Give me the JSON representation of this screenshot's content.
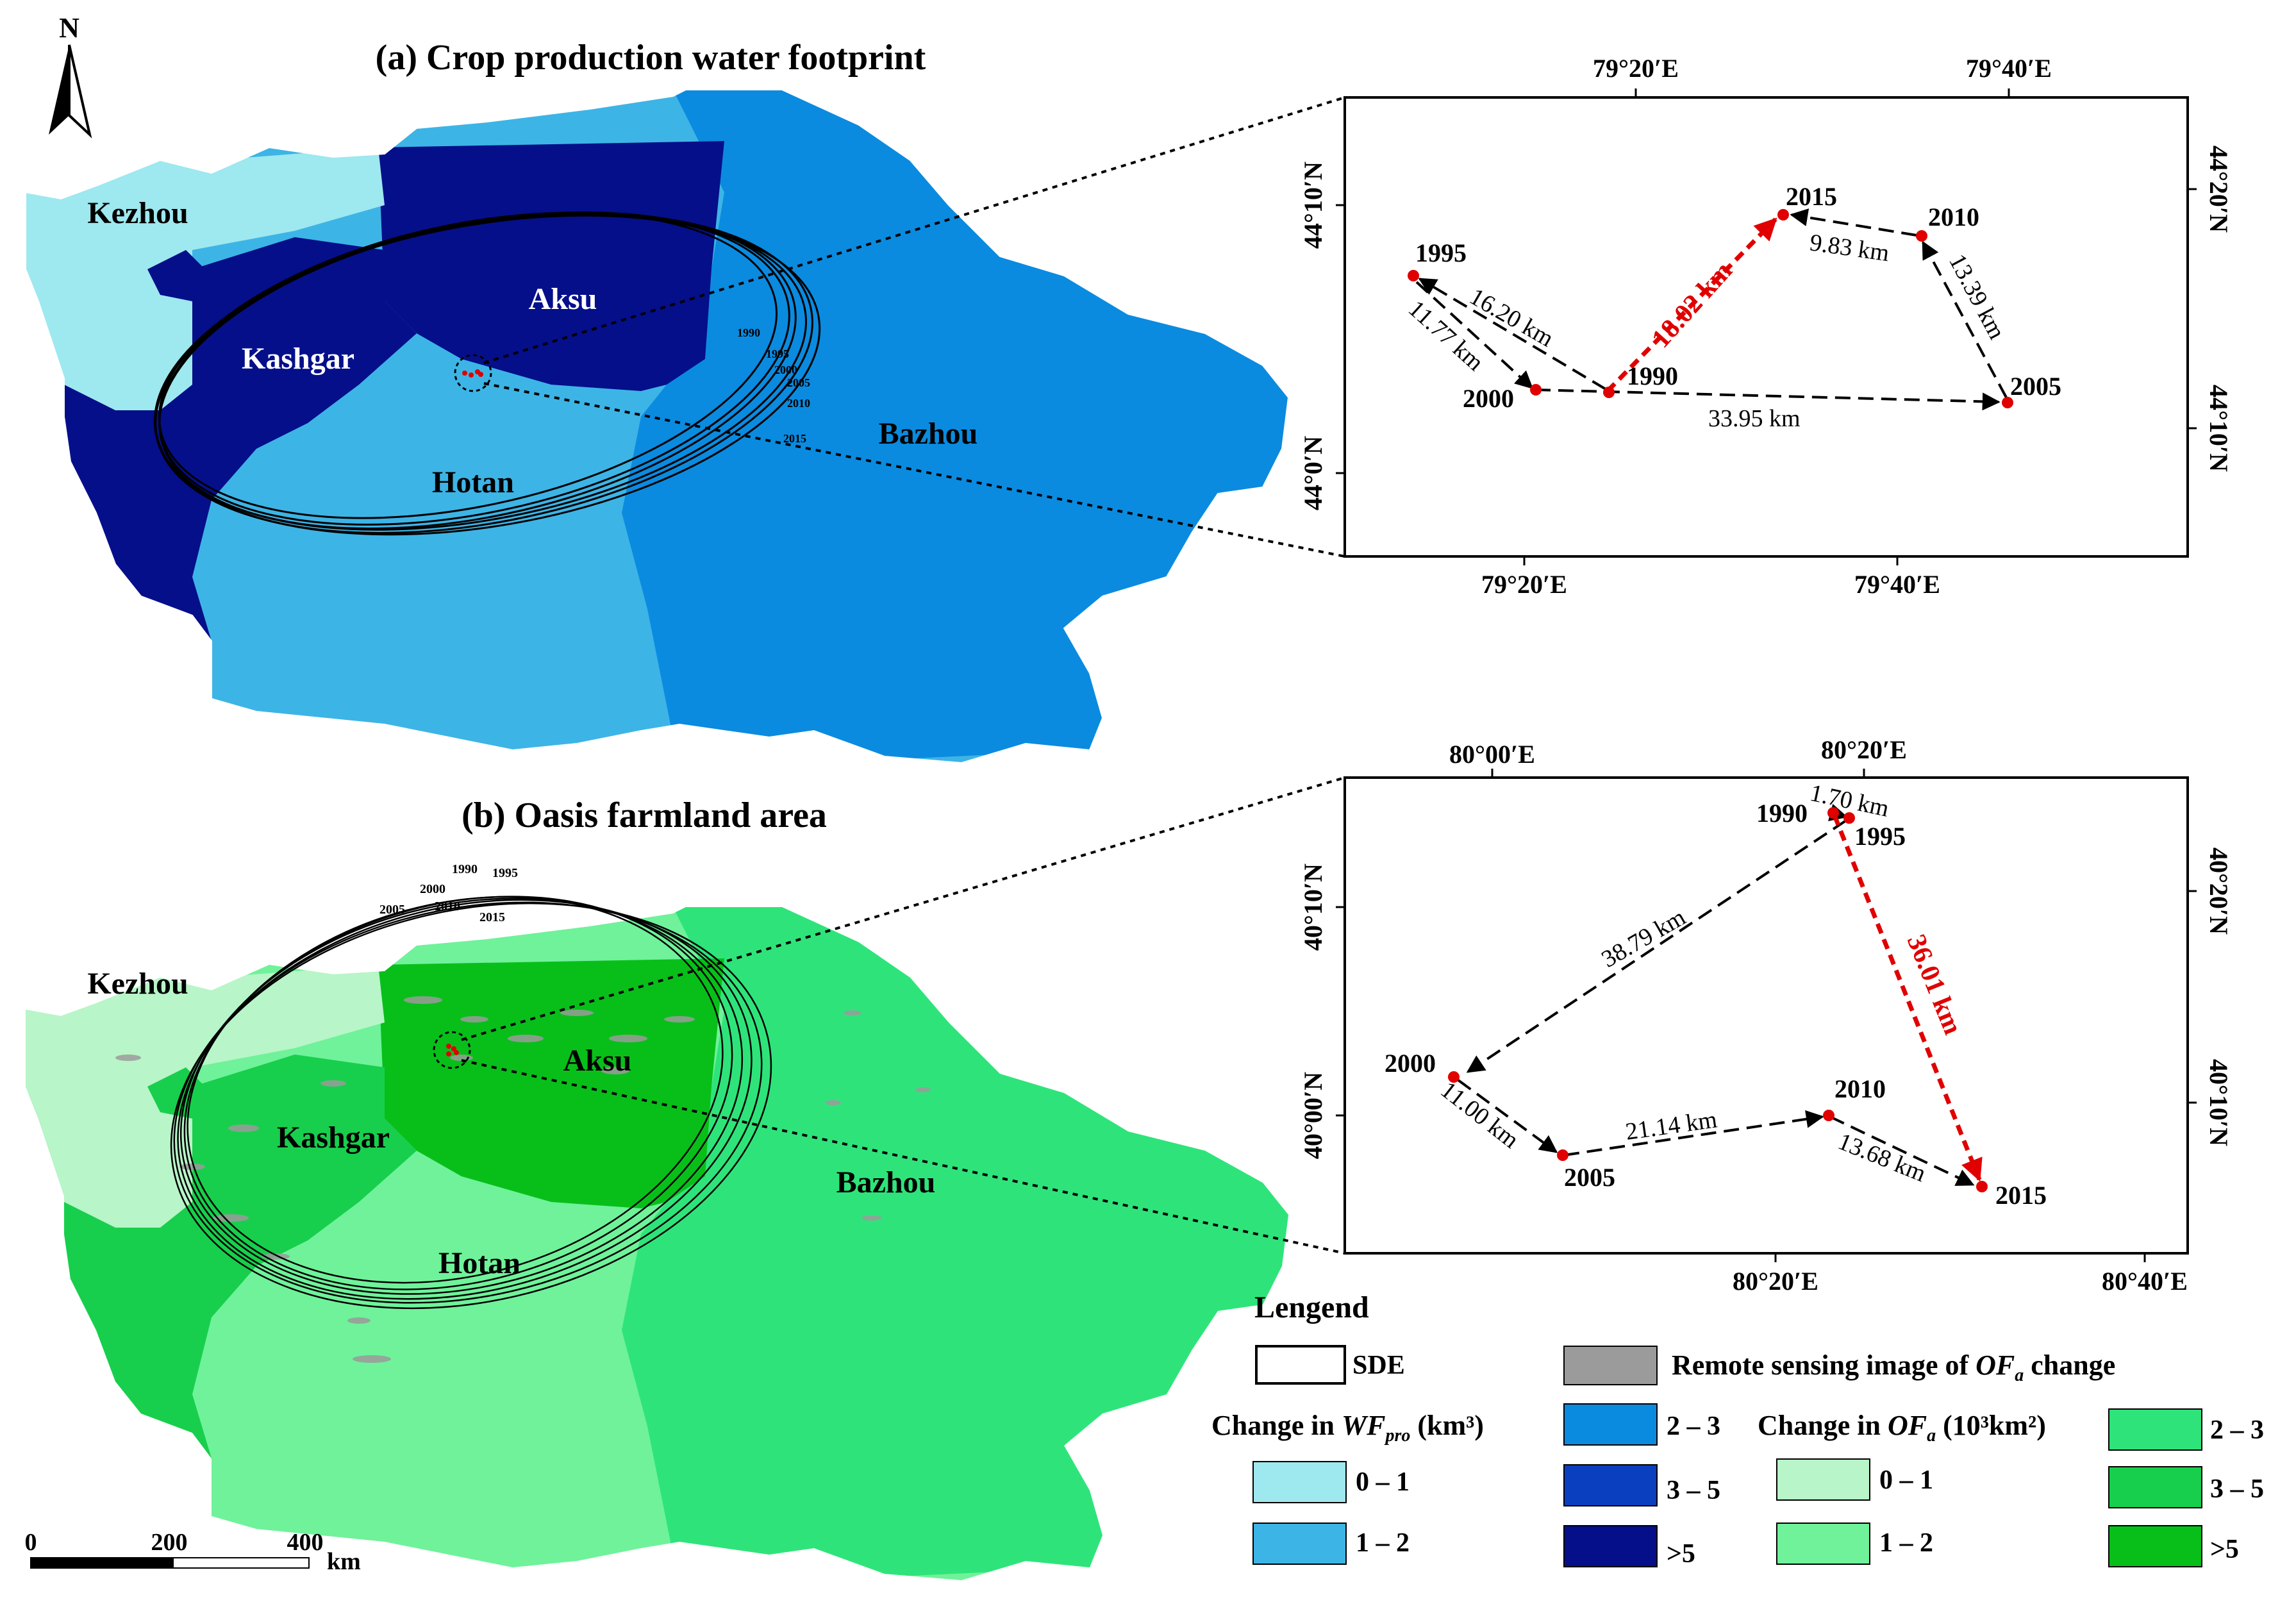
{
  "north_arrow": {
    "label": "N"
  },
  "panel_a": {
    "title": "(a) Crop production water footprint",
    "regions": {
      "kezhou": "Kezhou",
      "kashgar": "Kashgar",
      "aksu": "Aksu",
      "hotan": "Hotan",
      "bazhou": "Bazhou"
    },
    "ellipse_years": [
      "1990",
      "1995",
      "2000",
      "2005",
      "2010",
      "2015"
    ],
    "inset": {
      "top_ticks": [
        "79°20′E",
        "79°40′E"
      ],
      "bottom_ticks": [
        "79°20′E",
        "79°40′E"
      ],
      "left_ticks": [
        "44°10′N",
        "44°0′N"
      ],
      "right_ticks": [
        "44°20′N",
        "44°10′N"
      ],
      "points": [
        {
          "year": "1995"
        },
        {
          "year": "2000"
        },
        {
          "year": "1990"
        },
        {
          "year": "2015"
        },
        {
          "year": "2010"
        },
        {
          "year": "2005"
        }
      ],
      "segments": [
        {
          "label": "16.20 km"
        },
        {
          "label": "11.77 km"
        },
        {
          "label": "33.95 km"
        },
        {
          "label": "13.39 km"
        },
        {
          "label": "9.83 km"
        },
        {
          "label": "18.02 km",
          "highlight": true
        }
      ]
    }
  },
  "panel_b": {
    "title": "(b) Oasis farmland area",
    "regions": {
      "kezhou": "Kezhou",
      "kashgar": "Kashgar",
      "aksu": "Aksu",
      "hotan": "Hotan",
      "bazhou": "Bazhou"
    },
    "ellipse_years": [
      "1990",
      "1995",
      "2000",
      "2005",
      "2010",
      "2015"
    ],
    "inset": {
      "top_ticks": [
        "80°00′E",
        "80°20′E"
      ],
      "bottom_ticks": [
        "80°20′E",
        "80°40′E"
      ],
      "left_ticks": [
        "40°10′N",
        "40°00′N"
      ],
      "right_ticks": [
        "40°20′N",
        "40°10′N"
      ],
      "points": [
        {
          "year": "1990"
        },
        {
          "year": "1995"
        },
        {
          "year": "2000"
        },
        {
          "year": "2005"
        },
        {
          "year": "2010"
        },
        {
          "year": "2015"
        }
      ],
      "segments": [
        {
          "label": "1.70 km"
        },
        {
          "label": "38.79 km"
        },
        {
          "label": "11.00 km"
        },
        {
          "label": "21.14 km"
        },
        {
          "label": "13.68 km"
        },
        {
          "label": "36.01 km",
          "highlight": true
        }
      ]
    }
  },
  "scale_bar": {
    "ticks": [
      "0",
      "200",
      "400"
    ],
    "unit": "km"
  },
  "legend": {
    "title": "Lengend",
    "sde": "SDE",
    "remote": {
      "text": "Remote sensing image of ",
      "var": "OF",
      "sub": "a",
      "suffix": " change",
      "color": "#9b9b9b"
    },
    "wf_heading": {
      "text": "Change in ",
      "var": "WF",
      "sub": "pro",
      "unit": " (km³)"
    },
    "of_heading": {
      "text": "Change in ",
      "var": "OF",
      "sub": "a",
      "unit": " (10³km²)"
    },
    "wf_classes": [
      {
        "label": "0 – 1",
        "color": "#9ee8ef"
      },
      {
        "label": "1 – 2",
        "color": "#3db4e6"
      },
      {
        "label": "2 – 3",
        "color": "#0a8be0"
      },
      {
        "label": "3 – 5",
        "color": "#0a40c0"
      },
      {
        "label": ">5",
        "color": "#050f8a"
      }
    ],
    "of_classes": [
      {
        "label": "0 – 1",
        "color": "#b8f5c8"
      },
      {
        "label": "1 – 2",
        "color": "#6ff29a"
      },
      {
        "label": "2 – 3",
        "color": "#2ee47a"
      },
      {
        "label": "3 – 5",
        "color": "#17cf4c"
      },
      {
        "label": ">5",
        "color": "#08bf1a"
      }
    ]
  },
  "colors": {
    "highlight": "#e00000",
    "point": "#e00000"
  }
}
